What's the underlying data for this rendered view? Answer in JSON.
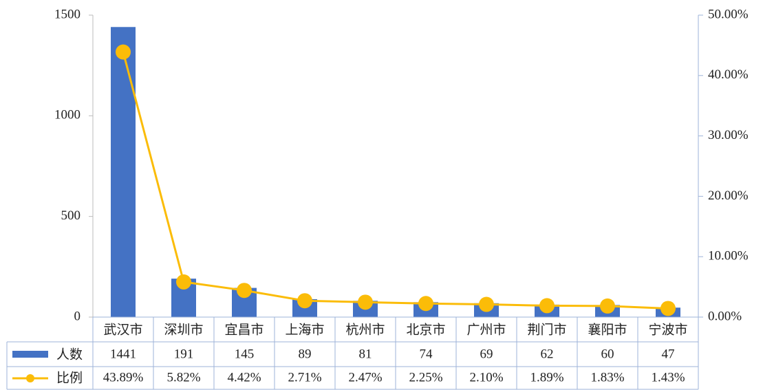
{
  "chart_data": {
    "type": "bar_line_table",
    "categories": [
      "武汉市",
      "深圳市",
      "宜昌市",
      "上海市",
      "杭州市",
      "北京市",
      "广州市",
      "荆门市",
      "襄阳市",
      "宁波市"
    ],
    "series": [
      {
        "name": "人数",
        "type": "bar",
        "color": "#4472c4",
        "values": [
          1441,
          191,
          145,
          89,
          81,
          74,
          69,
          62,
          60,
          47
        ]
      },
      {
        "name": "比例",
        "type": "line",
        "axis": "y2",
        "color": "#fbbc08",
        "values": [
          43.89,
          5.82,
          4.42,
          2.71,
          2.47,
          2.25,
          2.1,
          1.89,
          1.83,
          1.43
        ],
        "value_labels": [
          "43.89%",
          "5.82%",
          "4.42%",
          "2.71%",
          "2.47%",
          "2.25%",
          "2.10%",
          "1.89%",
          "1.83%",
          "1.43%"
        ]
      }
    ],
    "ylim": [
      0,
      1500
    ],
    "yticks": [
      0,
      500,
      1000,
      1500
    ],
    "y2lim": [
      0,
      50
    ],
    "y2ticks": [
      {
        "value": 0,
        "label": "0.00%"
      },
      {
        "value": 10,
        "label": "10.00%"
      },
      {
        "value": 20,
        "label": "20.00%"
      },
      {
        "value": 30,
        "label": "30.00%"
      },
      {
        "value": 40,
        "label": "40.00%"
      },
      {
        "value": 50,
        "label": "50.00%"
      }
    ]
  }
}
